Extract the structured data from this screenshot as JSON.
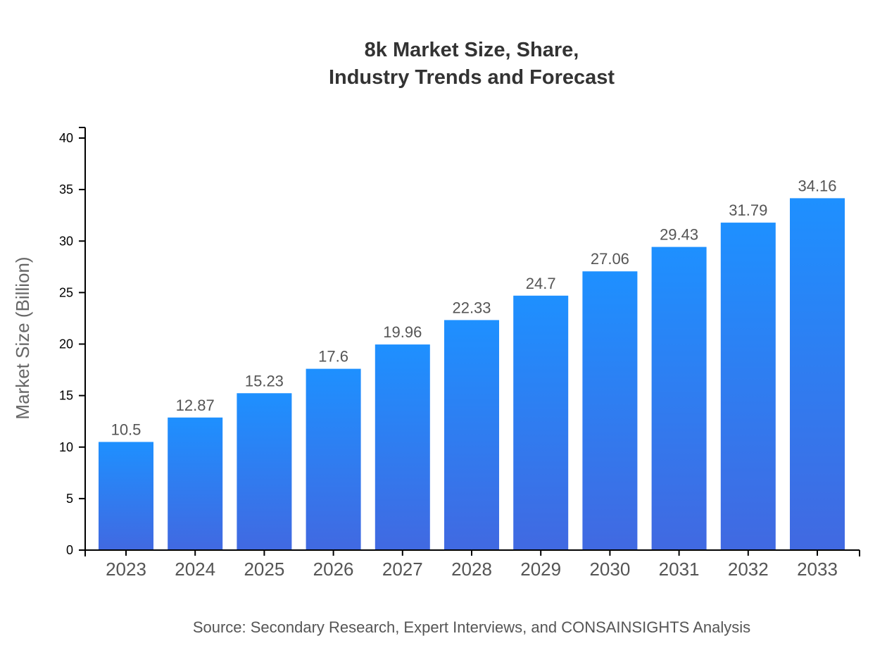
{
  "chart_data": {
    "type": "bar",
    "title_line1": "8k Market Size, Share,",
    "title_line2": "Industry Trends and Forecast",
    "xlabel": "",
    "ylabel": "Market Size (Billion)",
    "categories": [
      "2023",
      "2024",
      "2025",
      "2026",
      "2027",
      "2028",
      "2029",
      "2030",
      "2031",
      "2032",
      "2033"
    ],
    "values": [
      10.5,
      12.87,
      15.23,
      17.6,
      19.96,
      22.33,
      24.7,
      27.06,
      29.43,
      31.79,
      34.16
    ],
    "ylim": [
      0,
      40
    ],
    "yticks": [
      0,
      5,
      10,
      15,
      20,
      25,
      30,
      35,
      40
    ],
    "grid": false,
    "gradient_colors": [
      "#1E90FF",
      "#4169E1"
    ],
    "source": "Source: Secondary Research, Expert Interviews, and CONSAINSIGHTS Analysis"
  }
}
